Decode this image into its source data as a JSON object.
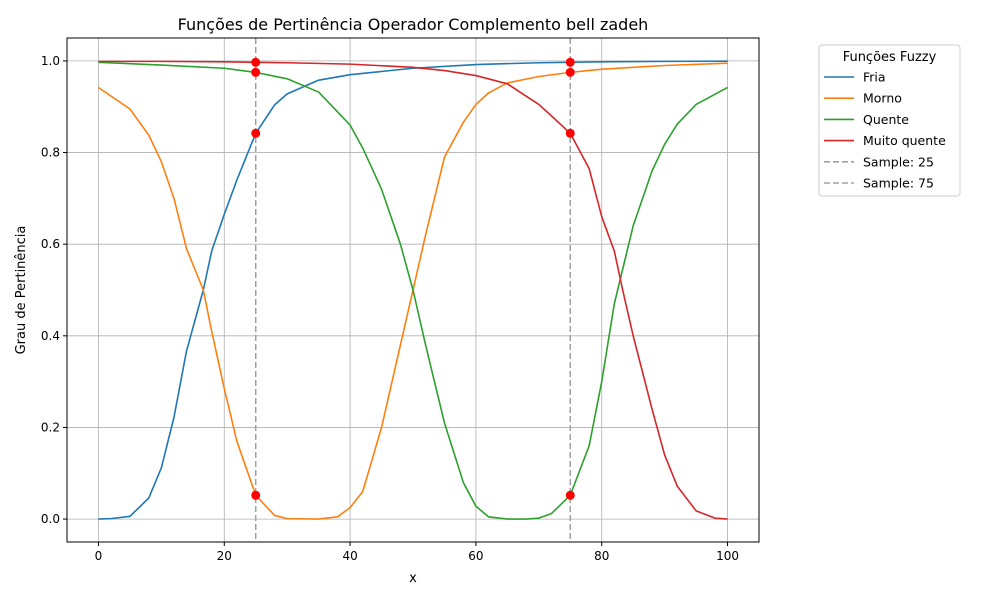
{
  "chart_data": {
    "type": "line",
    "title": "Funções de Pertinência Operador Complemento bell zadeh",
    "xlabel": "x",
    "ylabel": "Grau de Pertinência",
    "xlim": [
      -5,
      105
    ],
    "ylim": [
      -0.05,
      1.05
    ],
    "xticks": [
      "0",
      "20",
      "40",
      "60",
      "80",
      "100"
    ],
    "yticks": [
      "0.0",
      "0.2",
      "0.4",
      "0.6",
      "0.8",
      "1.0"
    ],
    "grid": true,
    "legend": {
      "title": "Funções Fuzzy",
      "placement": "outside-right-top"
    },
    "series": [
      {
        "name": "Fria",
        "color": "#1f77b4",
        "x": [
          0,
          2,
          5,
          8,
          10,
          12,
          14,
          16.67,
          18,
          20,
          22,
          25,
          28,
          30,
          35,
          40,
          50,
          60,
          70,
          80,
          90,
          100
        ],
        "y": [
          0.0,
          0.001,
          0.006,
          0.046,
          0.112,
          0.222,
          0.367,
          0.5,
          0.585,
          0.665,
          0.74,
          0.842,
          0.904,
          0.928,
          0.958,
          0.97,
          0.984,
          0.992,
          0.996,
          0.998,
          0.999,
          0.9995
        ]
      },
      {
        "name": "Morno",
        "color": "#ff7f0e",
        "x": [
          0,
          5,
          8,
          10,
          12,
          14,
          16.67,
          18,
          20,
          22,
          25,
          28,
          30,
          35,
          38,
          40,
          42,
          45,
          48,
          50,
          52,
          55,
          58,
          60,
          62,
          65,
          70,
          75,
          80,
          90,
          100
        ],
        "y": [
          0.942,
          0.895,
          0.838,
          0.78,
          0.7,
          0.59,
          0.5,
          0.41,
          0.285,
          0.17,
          0.052,
          0.008,
          0.001,
          0.0,
          0.005,
          0.025,
          0.06,
          0.2,
          0.38,
          0.5,
          0.62,
          0.79,
          0.866,
          0.905,
          0.93,
          0.952,
          0.966,
          0.975,
          0.982,
          0.99,
          0.995
        ]
      },
      {
        "name": "Quente",
        "color": "#2ca02c",
        "x": [
          0,
          10,
          20,
          25,
          30,
          35,
          40,
          42,
          45,
          48,
          50,
          52,
          55,
          58,
          60,
          62,
          65,
          68,
          70,
          72,
          75,
          78,
          80,
          82,
          85,
          88,
          90,
          92,
          95,
          100
        ],
        "y": [
          0.997,
          0.991,
          0.984,
          0.975,
          0.961,
          0.932,
          0.86,
          0.81,
          0.72,
          0.6,
          0.5,
          0.38,
          0.21,
          0.08,
          0.028,
          0.005,
          0.0,
          0.0,
          0.002,
          0.012,
          0.052,
          0.16,
          0.3,
          0.47,
          0.64,
          0.76,
          0.818,
          0.862,
          0.905,
          0.942
        ]
      },
      {
        "name": "Muito quente",
        "color": "#d62728",
        "x": [
          0,
          10,
          20,
          25,
          30,
          40,
          50,
          55,
          60,
          65,
          70,
          72,
          75,
          78,
          80,
          82,
          83.33,
          85,
          88,
          90,
          92,
          95,
          98,
          100
        ],
        "y": [
          0.999,
          0.999,
          0.998,
          0.997,
          0.996,
          0.993,
          0.986,
          0.979,
          0.968,
          0.95,
          0.905,
          0.88,
          0.842,
          0.765,
          0.66,
          0.585,
          0.5,
          0.4,
          0.24,
          0.14,
          0.072,
          0.018,
          0.002,
          0.0
        ]
      }
    ],
    "samples": [
      {
        "label": "Sample: 25",
        "x": 25,
        "color": "#a0a0a0",
        "points": [
          0.842,
          0.052,
          0.975,
          0.997
        ]
      },
      {
        "label": "Sample: 75",
        "x": 75,
        "color": "#a0a0a0",
        "points": [
          0.997,
          0.975,
          0.052,
          0.842
        ]
      }
    ],
    "marker_color": "#ff0000"
  }
}
